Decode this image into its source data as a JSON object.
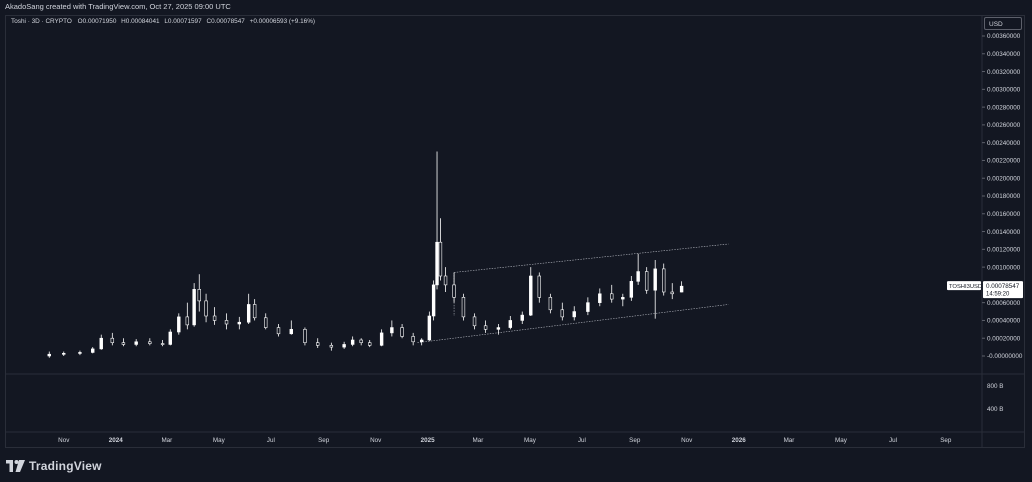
{
  "header": {
    "attribution": "AkadoSang created with TradingView.com, Oct 27, 2025 09:00 UTC"
  },
  "legend": {
    "symbol": "Toshi · 3D · CRYPTO",
    "open_label": "O",
    "open": "0.00071950",
    "high_label": "H",
    "high": "0.00084041",
    "low_label": "L",
    "low": "0.00071597",
    "close_label": "C",
    "close": "0.00078547",
    "change": "+0.00006593 (+9.16%)"
  },
  "currency_button": "USD",
  "price_tag": {
    "symbol": "TOSHI3USD",
    "price": "0.00078547",
    "countdown": "14:59:20"
  },
  "footer": {
    "brand": "TradingView"
  },
  "colors": {
    "background": "#131722",
    "candle": "#ffffff",
    "text": "#d1d4dc",
    "grid": "#2a2e39"
  },
  "chart_data": {
    "type": "candlestick",
    "y_axis": {
      "ticks": [
        "0.00360000",
        "0.00340000",
        "0.00320000",
        "0.00300000",
        "0.00280000",
        "0.00260000",
        "0.00240000",
        "0.00220000",
        "0.00200000",
        "0.00180000",
        "0.00160000",
        "0.00140000",
        "0.00120000",
        "0.00100000",
        "0.00060000",
        "0.00040000",
        "0.00020000",
        "-0.00000000"
      ],
      "tick_values": [
        0.0036,
        0.0034,
        0.0032,
        0.003,
        0.0028,
        0.0026,
        0.0024,
        0.0022,
        0.002,
        0.0018,
        0.0016,
        0.0014,
        0.0012,
        0.001,
        0.0006,
        0.0004,
        0.0002,
        0.0
      ],
      "range": [
        0,
        0.0037
      ]
    },
    "x_axis": {
      "ticks": [
        "Nov",
        "2024",
        "Mar",
        "May",
        "Jul",
        "Sep",
        "Nov",
        "2025",
        "Mar",
        "May",
        "Jul",
        "Sep",
        "Nov",
        "2026",
        "Mar",
        "May",
        "Jul",
        "Sep"
      ],
      "tick_dates": [
        "2023-11-01",
        "2024-01-01",
        "2024-03-01",
        "2024-05-01",
        "2024-07-01",
        "2024-09-01",
        "2024-11-01",
        "2025-01-01",
        "2025-03-01",
        "2025-05-01",
        "2025-07-01",
        "2025-09-01",
        "2025-11-01",
        "2026-01-01",
        "2026-03-01",
        "2026-05-01",
        "2026-07-01",
        "2026-09-01"
      ],
      "range": [
        "2023-09-15",
        "2026-10-25"
      ]
    },
    "volume_axis": {
      "ticks": [
        "800 B",
        "400 B"
      ],
      "tick_values": [
        800,
        400
      ],
      "range": [
        0,
        1000
      ]
    },
    "trend_channel": {
      "upper": [
        [
          "2025-02-01",
          0.00094
        ],
        [
          "2025-12-20",
          0.00126
        ]
      ],
      "lower": [
        [
          "2024-12-20",
          0.00015
        ],
        [
          "2025-12-20",
          0.00058
        ]
      ]
    },
    "series": [
      {
        "values": [
          [
            "2023-10-15",
            0.0,
            5e-05,
            -2e-05,
            2e-05
          ],
          [
            "2023-11-01",
            2e-05,
            5e-05,
            0.0,
            3e-05
          ],
          [
            "2023-11-20",
            3e-05,
            6e-05,
            1e-05,
            4e-05
          ],
          [
            "2023-12-05",
            4e-05,
            0.0001,
            3e-05,
            8e-05
          ],
          [
            "2023-12-15",
            8e-05,
            0.00024,
            7e-05,
            0.0002
          ],
          [
            "2023-12-28",
            0.0002,
            0.00026,
            0.00012,
            0.00015
          ],
          [
            "2024-01-10",
            0.00015,
            0.0002,
            0.00011,
            0.00013
          ],
          [
            "2024-01-25",
            0.00013,
            0.00019,
            0.00011,
            0.00016
          ],
          [
            "2024-02-10",
            0.00016,
            0.0002,
            0.00012,
            0.00014
          ],
          [
            "2024-02-25",
            0.00014,
            0.00018,
            0.00011,
            0.00013
          ],
          [
            "2024-03-05",
            0.00013,
            0.0003,
            0.00012,
            0.00027
          ],
          [
            "2024-03-15",
            0.00027,
            0.00048,
            0.00024,
            0.00044
          ],
          [
            "2024-03-25",
            0.00044,
            0.0006,
            0.0003,
            0.00035
          ],
          [
            "2024-04-02",
            0.00035,
            0.00082,
            0.00033,
            0.00075
          ],
          [
            "2024-04-08",
            0.00075,
            0.00092,
            0.0005,
            0.00062
          ],
          [
            "2024-04-16",
            0.00062,
            0.0007,
            0.00038,
            0.00045
          ],
          [
            "2024-04-26",
            0.00045,
            0.00055,
            0.00035,
            0.0004
          ],
          [
            "2024-05-10",
            0.0004,
            0.00048,
            0.0003,
            0.00036
          ],
          [
            "2024-05-25",
            0.00036,
            0.00044,
            0.0003,
            0.00038
          ],
          [
            "2024-06-05",
            0.00038,
            0.0007,
            0.00036,
            0.00058
          ],
          [
            "2024-06-12",
            0.00058,
            0.00064,
            0.0004,
            0.00043
          ],
          [
            "2024-06-25",
            0.00043,
            0.00048,
            0.0003,
            0.00032
          ],
          [
            "2024-07-10",
            0.00032,
            0.00036,
            0.00022,
            0.00025
          ],
          [
            "2024-07-25",
            0.00025,
            0.0004,
            0.00024,
            0.0003
          ],
          [
            "2024-08-10",
            0.0003,
            0.00032,
            0.00012,
            0.00015
          ],
          [
            "2024-08-25",
            0.00015,
            0.0002,
            9e-05,
            0.00012
          ],
          [
            "2024-09-10",
            0.00012,
            0.00015,
            6e-05,
            0.0001
          ],
          [
            "2024-09-25",
            0.0001,
            0.00016,
            8e-05,
            0.00013
          ],
          [
            "2024-10-05",
            0.00013,
            0.00022,
            0.00011,
            0.00018
          ],
          [
            "2024-10-15",
            0.00018,
            0.0002,
            0.00012,
            0.00015
          ],
          [
            "2024-10-25",
            0.00015,
            0.00018,
            0.0001,
            0.00012
          ],
          [
            "2024-11-08",
            0.00012,
            0.0003,
            0.00011,
            0.00026
          ],
          [
            "2024-11-20",
            0.00026,
            0.0004,
            0.00022,
            0.00032
          ],
          [
            "2024-12-02",
            0.00032,
            0.00036,
            0.0002,
            0.00022
          ],
          [
            "2024-12-15",
            0.00022,
            0.00026,
            0.00012,
            0.00016
          ],
          [
            "2024-12-25",
            0.00016,
            0.0002,
            0.00012,
            0.00018
          ],
          [
            "2025-01-03",
            0.00018,
            0.0005,
            0.00017,
            0.00045
          ],
          [
            "2025-01-08",
            0.00045,
            0.00085,
            0.0004,
            0.0008
          ],
          [
            "2025-01-12",
            0.0008,
            0.0023,
            0.00075,
            0.00128
          ],
          [
            "2025-01-16",
            0.00128,
            0.00155,
            0.00085,
            0.0009
          ],
          [
            "2025-01-22",
            0.0009,
            0.001,
            0.00072,
            0.0008
          ],
          [
            "2025-02-01",
            0.0008,
            0.00094,
            0.0006,
            0.00066
          ],
          [
            "2025-02-12",
            0.00066,
            0.0007,
            0.0004,
            0.00044
          ],
          [
            "2025-02-25",
            0.00044,
            0.00048,
            0.0003,
            0.00034
          ],
          [
            "2025-03-10",
            0.00034,
            0.0004,
            0.00026,
            0.0003
          ],
          [
            "2025-03-25",
            0.0003,
            0.00036,
            0.00024,
            0.00032
          ],
          [
            "2025-04-08",
            0.00032,
            0.00045,
            0.0003,
            0.0004
          ],
          [
            "2025-04-22",
            0.0004,
            0.0005,
            0.00036,
            0.00046
          ],
          [
            "2025-05-02",
            0.00046,
            0.001,
            0.00045,
            0.0009
          ],
          [
            "2025-05-12",
            0.0009,
            0.00094,
            0.0006,
            0.00066
          ],
          [
            "2025-05-25",
            0.00066,
            0.0007,
            0.00048,
            0.00052
          ],
          [
            "2025-06-08",
            0.00052,
            0.0006,
            0.0004,
            0.00044
          ],
          [
            "2025-06-22",
            0.00044,
            0.00056,
            0.0004,
            0.0005
          ],
          [
            "2025-07-08",
            0.0005,
            0.00066,
            0.00046,
            0.0006
          ],
          [
            "2025-07-22",
            0.0006,
            0.00076,
            0.00056,
            0.0007
          ],
          [
            "2025-08-05",
            0.0007,
            0.0008,
            0.0006,
            0.00064
          ],
          [
            "2025-08-18",
            0.00064,
            0.0007,
            0.00056,
            0.00066
          ],
          [
            "2025-08-28",
            0.00066,
            0.0009,
            0.00062,
            0.00084
          ],
          [
            "2025-09-05",
            0.00084,
            0.00115,
            0.0008,
            0.00095
          ],
          [
            "2025-09-15",
            0.00095,
            0.001,
            0.0007,
            0.00074
          ],
          [
            "2025-09-25",
            0.00074,
            0.00108,
            0.00042,
            0.00098
          ],
          [
            "2025-10-05",
            0.00098,
            0.00104,
            0.00068,
            0.00072
          ],
          [
            "2025-10-15",
            0.00072,
            0.00082,
            0.00064,
            0.0007
          ],
          [
            "2025-10-26",
            0.0007195,
            0.00084041,
            0.00071597,
            0.00078547
          ]
        ]
      }
    ]
  }
}
